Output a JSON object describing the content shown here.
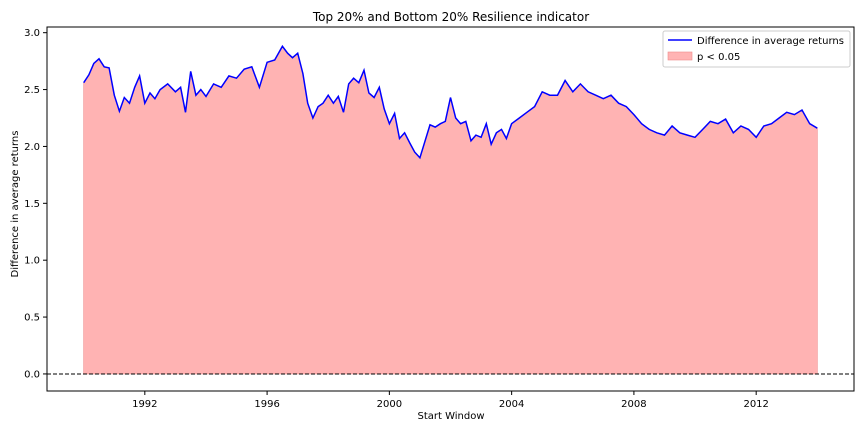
{
  "chart_data": {
    "type": "area",
    "title": "Top 20% and Bottom 20% Resilience indicator",
    "xlabel": "Start Window",
    "ylabel": "Difference in average returns",
    "xlim": [
      1988.8,
      2015.2
    ],
    "ylim": [
      -0.15,
      3.05
    ],
    "x_ticks": [
      1992,
      1996,
      2000,
      2004,
      2008,
      2012
    ],
    "x_tick_labels": [
      "1992",
      "1996",
      "2000",
      "2004",
      "2008",
      "2012"
    ],
    "y_ticks": [
      0.0,
      0.5,
      1.0,
      1.5,
      2.0,
      2.5,
      3.0
    ],
    "y_tick_labels": [
      "0.0",
      "0.5",
      "1.0",
      "1.5",
      "2.0",
      "2.5",
      "3.0"
    ],
    "reference_line": {
      "y": 0.0,
      "style": "dashed",
      "color": "#000000"
    },
    "series": [
      {
        "name": "Difference in average returns",
        "color": "#0000ff",
        "x": [
          1990.0,
          1990.17,
          1990.33,
          1990.5,
          1990.67,
          1990.83,
          1991.0,
          1991.17,
          1991.33,
          1991.5,
          1991.67,
          1991.83,
          1992.0,
          1992.17,
          1992.33,
          1992.5,
          1992.75,
          1993.0,
          1993.17,
          1993.33,
          1993.5,
          1993.67,
          1993.83,
          1994.0,
          1994.25,
          1994.5,
          1994.75,
          1995.0,
          1995.25,
          1995.5,
          1995.75,
          1996.0,
          1996.25,
          1996.5,
          1996.67,
          1996.83,
          1997.0,
          1997.17,
          1997.33,
          1997.5,
          1997.67,
          1997.83,
          1998.0,
          1998.17,
          1998.33,
          1998.5,
          1998.67,
          1998.83,
          1999.0,
          1999.17,
          1999.33,
          1999.5,
          1999.67,
          1999.83,
          2000.0,
          2000.17,
          2000.33,
          2000.5,
          2000.67,
          2000.83,
          2001.0,
          2001.17,
          2001.33,
          2001.5,
          2001.67,
          2001.83,
          2002.0,
          2002.17,
          2002.33,
          2002.5,
          2002.67,
          2002.83,
          2003.0,
          2003.17,
          2003.33,
          2003.5,
          2003.67,
          2003.83,
          2004.0,
          2004.25,
          2004.5,
          2004.75,
          2005.0,
          2005.25,
          2005.5,
          2005.75,
          2006.0,
          2006.25,
          2006.5,
          2006.75,
          2007.0,
          2007.25,
          2007.5,
          2007.75,
          2008.0,
          2008.25,
          2008.5,
          2008.75,
          2009.0,
          2009.25,
          2009.5,
          2009.75,
          2010.0,
          2010.25,
          2010.5,
          2010.75,
          2011.0,
          2011.25,
          2011.5,
          2011.75,
          2012.0,
          2012.25,
          2012.5,
          2012.75,
          2013.0,
          2013.25,
          2013.5,
          2013.75,
          2014.0
        ],
        "y": [
          2.56,
          2.63,
          2.73,
          2.77,
          2.7,
          2.69,
          2.45,
          2.31,
          2.43,
          2.38,
          2.52,
          2.62,
          2.38,
          2.47,
          2.42,
          2.5,
          2.55,
          2.48,
          2.52,
          2.3,
          2.66,
          2.45,
          2.5,
          2.44,
          2.55,
          2.52,
          2.62,
          2.6,
          2.68,
          2.7,
          2.52,
          2.74,
          2.76,
          2.88,
          2.82,
          2.78,
          2.82,
          2.64,
          2.38,
          2.25,
          2.35,
          2.38,
          2.45,
          2.38,
          2.44,
          2.3,
          2.55,
          2.6,
          2.56,
          2.67,
          2.47,
          2.43,
          2.52,
          2.33,
          2.2,
          2.29,
          2.07,
          2.12,
          2.03,
          1.95,
          1.9,
          2.05,
          2.19,
          2.17,
          2.2,
          2.22,
          2.43,
          2.25,
          2.2,
          2.22,
          2.05,
          2.1,
          2.08,
          2.2,
          2.02,
          2.12,
          2.15,
          2.07,
          2.2,
          2.25,
          2.3,
          2.35,
          2.48,
          2.45,
          2.45,
          2.58,
          2.48,
          2.55,
          2.48,
          2.45,
          2.42,
          2.45,
          2.38,
          2.35,
          2.28,
          2.2,
          2.15,
          2.12,
          2.1,
          2.18,
          2.12,
          2.1,
          2.08,
          2.15,
          2.22,
          2.2,
          2.24,
          2.12,
          2.18,
          2.15,
          2.08,
          2.18,
          2.2,
          2.25,
          2.3,
          2.28,
          2.32,
          2.2,
          2.16
        ]
      }
    ],
    "shaded_region": {
      "label": "p < 0.05",
      "color": "#ffb3b3",
      "fill_to": 0.0
    },
    "legend": {
      "position": "top-right",
      "entries": [
        "Difference in average returns",
        "p < 0.05"
      ]
    }
  }
}
